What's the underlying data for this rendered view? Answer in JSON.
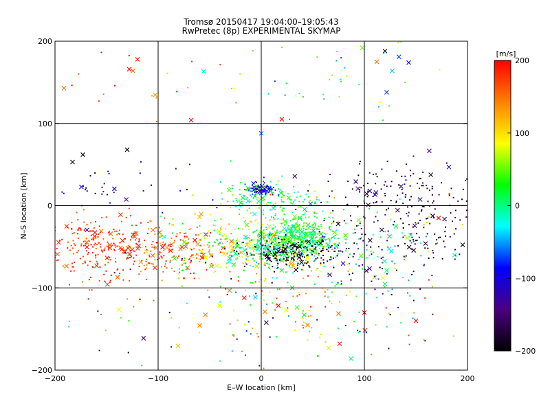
{
  "chart_data": {
    "type": "scatter",
    "title_line1": "Tromsø 20150417 19:04:00–19:05:43",
    "title_line2": "RwPretec (8p) EXPERIMENTAL SKYMAP",
    "xlabel": "E–W location [km]",
    "ylabel": "N–S location [km]",
    "xlim": [
      -200,
      200
    ],
    "ylim": [
      -200,
      200
    ],
    "x_ticks": [
      "−200",
      "−100",
      "0",
      "100",
      "200"
    ],
    "y_ticks": [
      "−200",
      "−100",
      "0",
      "100",
      "200"
    ],
    "grid": true,
    "grid_lines_x": [
      -100,
      0,
      100
    ],
    "grid_lines_y": [
      -100,
      0,
      100
    ],
    "colorbar": {
      "unit_label": "[m/s]",
      "range": [
        -200,
        200
      ],
      "ticks": [
        "200",
        "100",
        "0",
        "−100",
        "−200"
      ],
      "colors": [
        "#ff0000",
        "#ff8000",
        "#ffff00",
        "#00ff00",
        "#00ffff",
        "#0000ff",
        "#4b0082",
        "#000000"
      ],
      "colors_note": "top (200) to bottom (-200)"
    },
    "marker_types": [
      "dot",
      "x"
    ],
    "clusters": [
      {
        "cx": -155,
        "cy": -50,
        "sx": 30,
        "sy": 20,
        "vmin": 150,
        "vmax": 200,
        "n": 260
      },
      {
        "cx": -90,
        "cy": -55,
        "sx": 25,
        "sy": 15,
        "vmin": 130,
        "vmax": 200,
        "n": 140
      },
      {
        "cx": -30,
        "cy": -45,
        "sx": 35,
        "sy": 20,
        "vmin": 0,
        "vmax": 140,
        "n": 220
      },
      {
        "cx": 20,
        "cy": -50,
        "sx": 20,
        "sy": 12,
        "vmin": -60,
        "vmax": 100,
        "n": 380
      },
      {
        "cx": 40,
        "cy": -35,
        "sx": 20,
        "sy": 15,
        "vmin": -20,
        "vmax": 60,
        "n": 300
      },
      {
        "cx": 30,
        "cy": -58,
        "sx": 22,
        "sy": 8,
        "vmin": -200,
        "vmax": -170,
        "n": 180
      },
      {
        "cx": 0,
        "cy": 20,
        "sx": 7,
        "sy": 4,
        "vmin": -150,
        "vmax": -60,
        "n": 90
      },
      {
        "cx": 10,
        "cy": 10,
        "sx": 25,
        "sy": 10,
        "vmin": -40,
        "vmax": 70,
        "n": 120
      },
      {
        "cx": 140,
        "cy": -20,
        "sx": 40,
        "sy": 30,
        "vmin": -200,
        "vmax": -150,
        "n": 170
      },
      {
        "cx": 110,
        "cy": -60,
        "sx": 30,
        "sy": 25,
        "vmin": -120,
        "vmax": 80,
        "n": 90
      },
      {
        "cx": 30,
        "cy": -120,
        "sx": 40,
        "sy": 25,
        "vmin": 20,
        "vmax": 200,
        "n": 90
      },
      {
        "cx": -140,
        "cy": 25,
        "sx": 30,
        "sy": 12,
        "vmin": -200,
        "vmax": -80,
        "n": 30
      },
      {
        "cx": 130,
        "cy": 25,
        "sx": 40,
        "sy": 15,
        "vmin": -200,
        "vmax": -100,
        "n": 70
      },
      {
        "cx": 60,
        "cy": 150,
        "sx": 50,
        "sy": 30,
        "vmin": -80,
        "vmax": 90,
        "n": 40
      },
      {
        "cx": -100,
        "cy": 150,
        "sx": 50,
        "sy": 30,
        "vmin": 120,
        "vmax": 200,
        "n": 20
      },
      {
        "cx": 0,
        "cy": -100,
        "sx": 120,
        "sy": 60,
        "vmin": -200,
        "vmax": 200,
        "n": 220
      }
    ],
    "notable_points": [
      {
        "x": -120,
        "y": 178,
        "v": 200,
        "m": "x"
      },
      {
        "x": -128,
        "y": 166,
        "v": 200,
        "m": "x"
      },
      {
        "x": 120,
        "y": 188,
        "v": -200,
        "m": "x"
      },
      {
        "x": 98,
        "y": 192,
        "v": 50,
        "m": "x"
      },
      {
        "x": 143,
        "y": 174,
        "v": -100,
        "m": "x"
      },
      {
        "x": 127,
        "y": 164,
        "v": -40,
        "m": "x"
      },
      {
        "x": 112,
        "y": 175,
        "v": 150,
        "m": "x"
      },
      {
        "x": -68,
        "y": 104,
        "v": 200,
        "m": "x"
      },
      {
        "x": 20,
        "y": 105,
        "v": 200,
        "m": "x"
      },
      {
        "x": 0,
        "y": 88,
        "v": -60,
        "m": "x"
      },
      {
        "x": 182,
        "y": 47,
        "v": -120,
        "m": "x"
      },
      {
        "x": -183,
        "y": 53,
        "v": -200,
        "m": "x"
      },
      {
        "x": -173,
        "y": 62,
        "v": -200,
        "m": "x"
      },
      {
        "x": -130,
        "y": 68,
        "v": -200,
        "m": "x"
      },
      {
        "x": 87,
        "y": -186,
        "v": 0,
        "m": "x"
      },
      {
        "x": 100,
        "y": -130,
        "v": 200,
        "m": "x"
      },
      {
        "x": 150,
        "y": -140,
        "v": 200,
        "m": "x"
      },
      {
        "x": 172,
        "y": -15,
        "v": 200,
        "m": "x"
      }
    ]
  }
}
